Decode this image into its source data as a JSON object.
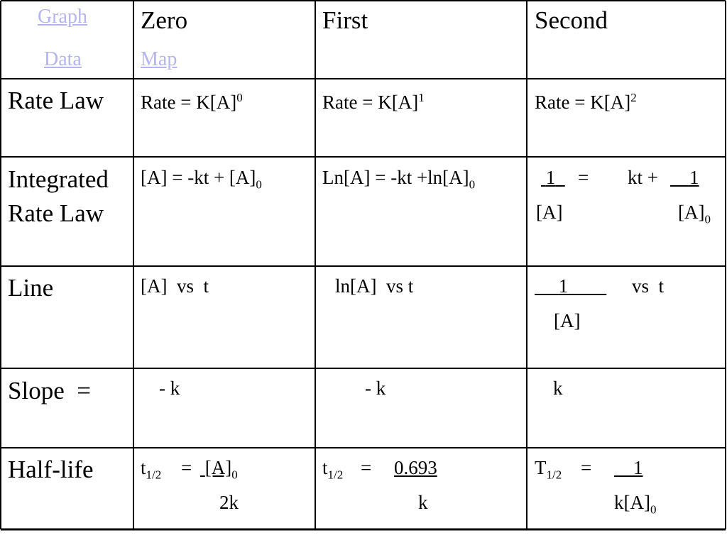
{
  "header": {
    "corner_links": {
      "graph": "Graph",
      "data": "Data"
    },
    "zero": "Zero",
    "zero_link": "Map",
    "first": "First",
    "second": "Second"
  },
  "rows": {
    "rate_law": {
      "label": "Rate Law",
      "zero": {
        "text": "Rate = K[A]",
        "sup": "0"
      },
      "first": {
        "text": "Rate = K[A]",
        "sup": "1"
      },
      "second": {
        "text": "Rate = K[A]",
        "sup": "2"
      }
    },
    "integrated": {
      "label_line1": "Integrated",
      "label_line2": "Rate Law",
      "zero": {
        "text": "[A] = -kt + [A]",
        "sub": "0"
      },
      "first": {
        "text": "Ln[A] = -kt +ln[A]",
        "sub": "0"
      },
      "second": {
        "num1": "1",
        "eq": "=",
        "kt": "kt +",
        "num2": "1",
        "den1": "[A]",
        "den2": "[A]",
        "den2_sub": "0"
      }
    },
    "line": {
      "label": "Line",
      "zero": "[A]  vs  t",
      "first": "ln[A]  vs t",
      "second": {
        "num": "1",
        "vs": "vs  t",
        "den": "[A]"
      }
    },
    "slope": {
      "label": "Slope  =",
      "zero": "- k",
      "first": "- k",
      "second": "k"
    },
    "half_life": {
      "label": "Half-life",
      "zero": {
        "t": "t",
        "t_sub": "1/2",
        "eq": "=",
        "num": "[A]",
        "num_sub": "0",
        "den": "2k"
      },
      "first": {
        "t": "t",
        "t_sub": "1/2",
        "eq": "=",
        "num": "0.693",
        "den": "k"
      },
      "second": {
        "t": "T",
        "t_sub": "1/2",
        "eq": "=",
        "num": "1",
        "den": "k[A]",
        "den_sub": "0"
      }
    }
  }
}
